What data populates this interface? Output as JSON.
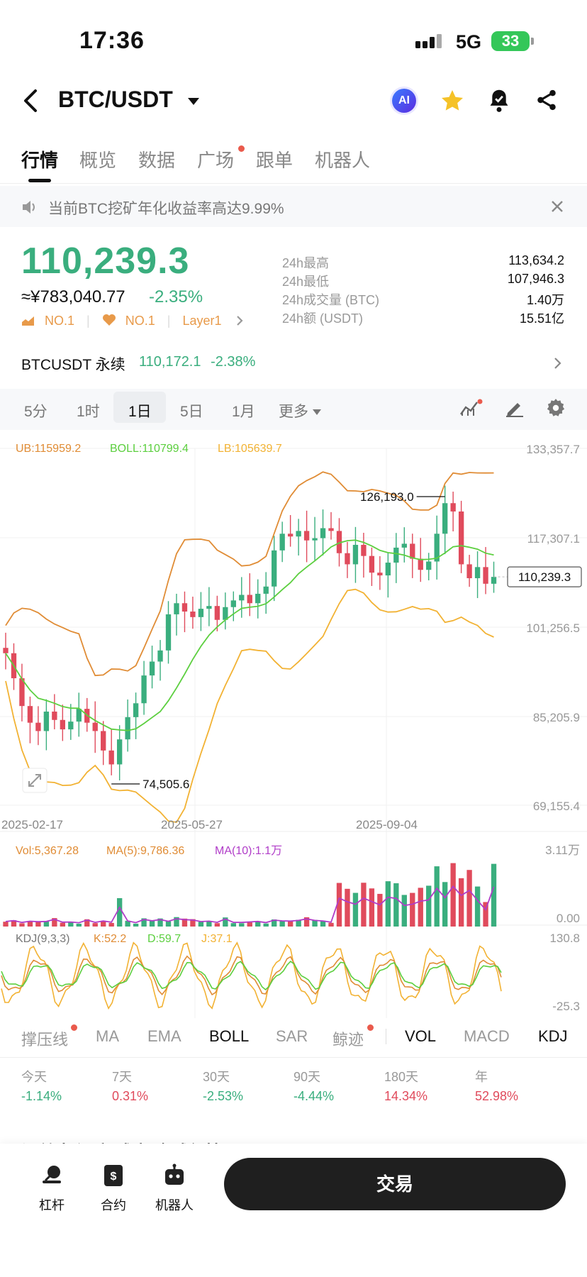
{
  "status_bar": {
    "time": "17:36",
    "network": "5G",
    "battery": "33"
  },
  "header": {
    "pair": "BTC/USDT",
    "ai_label": "AI"
  },
  "tabs": [
    {
      "label": "行情",
      "active": true
    },
    {
      "label": "概览"
    },
    {
      "label": "数据"
    },
    {
      "label": "广场",
      "dot": true
    },
    {
      "label": "跟单"
    },
    {
      "label": "机器人"
    }
  ],
  "notice": {
    "text": "当前BTC挖矿年化收益率高达9.99%"
  },
  "ticker": {
    "last_price": "110,239.3",
    "cny_price": "≈¥783,040.77",
    "change": "-2.35%",
    "badges": [
      "NO.1",
      "NO.1",
      "Layer1"
    ],
    "stats": [
      {
        "label": "24h最高",
        "value": "113,634.2"
      },
      {
        "label": "24h最低",
        "value": "107,946.3"
      },
      {
        "label": "24h成交量 (BTC)",
        "value": "1.40万"
      },
      {
        "label": "24h额 (USDT)",
        "value": "15.51亿"
      }
    ]
  },
  "perpetual": {
    "name": "BTCUSDT 永续",
    "price": "110,172.1",
    "change": "-2.38%"
  },
  "timeframes": {
    "items": [
      "5分",
      "1时",
      "1日",
      "5日",
      "1月",
      "更多"
    ],
    "active": "1日"
  },
  "chart_data": {
    "type": "candlestick",
    "interval": "1d",
    "price_axis": [
      "133,357.7",
      "117,307.1",
      "101,256.5",
      "85,205.9",
      "69,155.4"
    ],
    "ylim": [
      69155.4,
      133357.7
    ],
    "date_axis": [
      "2025-02-17",
      "2025-05-27",
      "2025-09-04"
    ],
    "current_price_label": "110,239.3",
    "high_marker": "126,193.0",
    "low_marker": "74,505.6",
    "boll": {
      "ub_label": "UB:115959.2",
      "mid_label": "BOLL:110799.4",
      "lb_label": "LB:105639.7"
    },
    "closes": [
      96500,
      92000,
      87000,
      84000,
      82500,
      86000,
      84500,
      82800,
      84200,
      86500,
      84000,
      82500,
      79000,
      76500,
      81000,
      85000,
      87500,
      92500,
      95000,
      97000,
      103500,
      105500,
      104000,
      103000,
      104500,
      105000,
      102500,
      104800,
      106000,
      107000,
      105500,
      107200,
      108500,
      115000,
      118000,
      117500,
      118500,
      116800,
      117200,
      119000,
      118500,
      114500,
      112500,
      116000,
      114000,
      111000,
      110500,
      112800,
      115500,
      116200,
      113500,
      111500,
      113000,
      118000,
      123500,
      122000,
      112500,
      110000,
      112000,
      109000,
      110239.3
    ],
    "volume": {
      "vol_label": "Vol:5,367.28",
      "ma5_label": "MA(5):9,786.36",
      "ma10_label": "MA(10):1.1万",
      "max_label": "3.11万",
      "min_label": "0.00"
    },
    "kdj": {
      "label": "KDJ(9,3,3)",
      "k_label": "K:52.2",
      "d_label": "D:59.7",
      "j_label": "J:37.1",
      "max_label": "130.8",
      "min_label": "-25.3"
    }
  },
  "indicators": [
    {
      "label": "撑压线",
      "on": false,
      "dot": true
    },
    {
      "label": "MA",
      "on": false
    },
    {
      "label": "EMA",
      "on": false
    },
    {
      "label": "BOLL",
      "on": true
    },
    {
      "label": "SAR",
      "on": false
    },
    {
      "label": "鲸迹",
      "on": false,
      "dot": true
    },
    {
      "label": "VOL",
      "on": true
    },
    {
      "label": "MACD",
      "on": false
    },
    {
      "label": "KDJ",
      "on": true
    }
  ],
  "performance": [
    {
      "label": "今天",
      "value": "-1.14%",
      "color": "#3aae7e"
    },
    {
      "label": "7天",
      "value": "0.31%",
      "color": "#e04b5c"
    },
    {
      "label": "30天",
      "value": "-2.53%",
      "color": "#3aae7e"
    },
    {
      "label": "90天",
      "value": "-4.44%",
      "color": "#3aae7e"
    },
    {
      "label": "180天",
      "value": "14.34%",
      "color": "#e04b5c"
    },
    {
      "label": "年",
      "value": "52.98%",
      "color": "#e04b5c"
    }
  ],
  "bottom_nav": {
    "items": [
      "杠杆",
      "合约",
      "机器人"
    ],
    "trade": "交易",
    "peek_tabs": "订单表  深度  成交  全球行情"
  },
  "colors": {
    "up": "#3aae7e",
    "down": "#e04b5c",
    "boll_upper": "#e08c35",
    "boll_mid": "#5ccf3f",
    "boll_lower": "#f2b233"
  }
}
